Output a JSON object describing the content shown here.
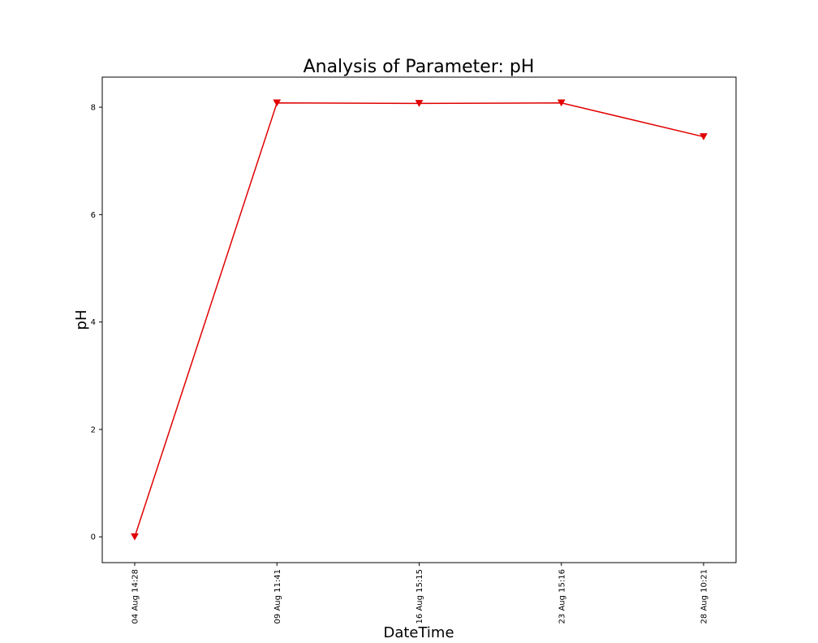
{
  "chart_data": {
    "type": "line",
    "title": "Analysis of Parameter: pH",
    "xlabel": "DateTime",
    "ylabel": "pH",
    "categories": [
      "04 Aug 14:28",
      "09 Aug 11:41",
      "16 Aug 15:15",
      "23 Aug 15:16",
      "28 Aug 10:21"
    ],
    "series": [
      {
        "values": [
          0.0,
          8.08,
          8.07,
          8.08,
          7.45
        ],
        "color": "#e00000",
        "marker": "triangle-down"
      }
    ],
    "ylim": [
      -0.48,
      8.56
    ],
    "yticks": [
      0,
      2,
      4,
      6,
      8
    ],
    "grid": false,
    "legend": "none"
  }
}
